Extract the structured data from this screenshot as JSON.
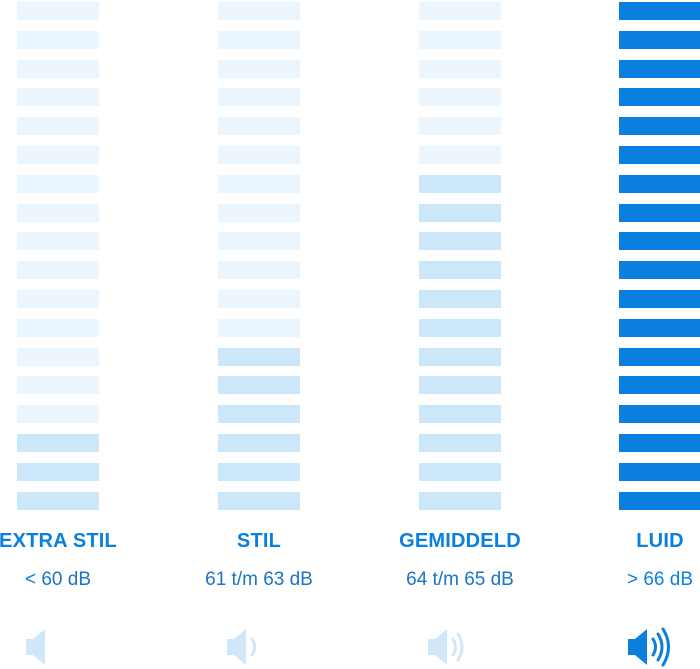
{
  "bar_count": 18,
  "colors": {
    "empty": "#eaf5fd",
    "filled_low": "#cce6fa",
    "filled_high": "#0a7fde",
    "label_text": "#0a7fde",
    "range_text": "#1a75c6",
    "speaker_low": "#cfe7f8",
    "speaker_high": "#0a7fde"
  },
  "levels": [
    {
      "id": "extra-stil",
      "label": "EXTRA STIL",
      "range": "< 60 dB",
      "filled_bars": 3,
      "style": "low",
      "speaker_icon": "speaker-muted-icon",
      "sound_waves": 0
    },
    {
      "id": "stil",
      "label": "STIL",
      "range": "61 t/m 63 dB",
      "filled_bars": 6,
      "style": "low",
      "speaker_icon": "speaker-low-icon",
      "sound_waves": 1
    },
    {
      "id": "gemiddeld",
      "label": "GEMIDDELD",
      "range": "64 t/m 65 dB",
      "filled_bars": 12,
      "style": "low",
      "speaker_icon": "speaker-medium-icon",
      "sound_waves": 2
    },
    {
      "id": "luid",
      "label": "LUID",
      "range": "> 66 dB",
      "filled_bars": 18,
      "style": "high",
      "speaker_icon": "speaker-loud-icon",
      "sound_waves": 3
    }
  ]
}
